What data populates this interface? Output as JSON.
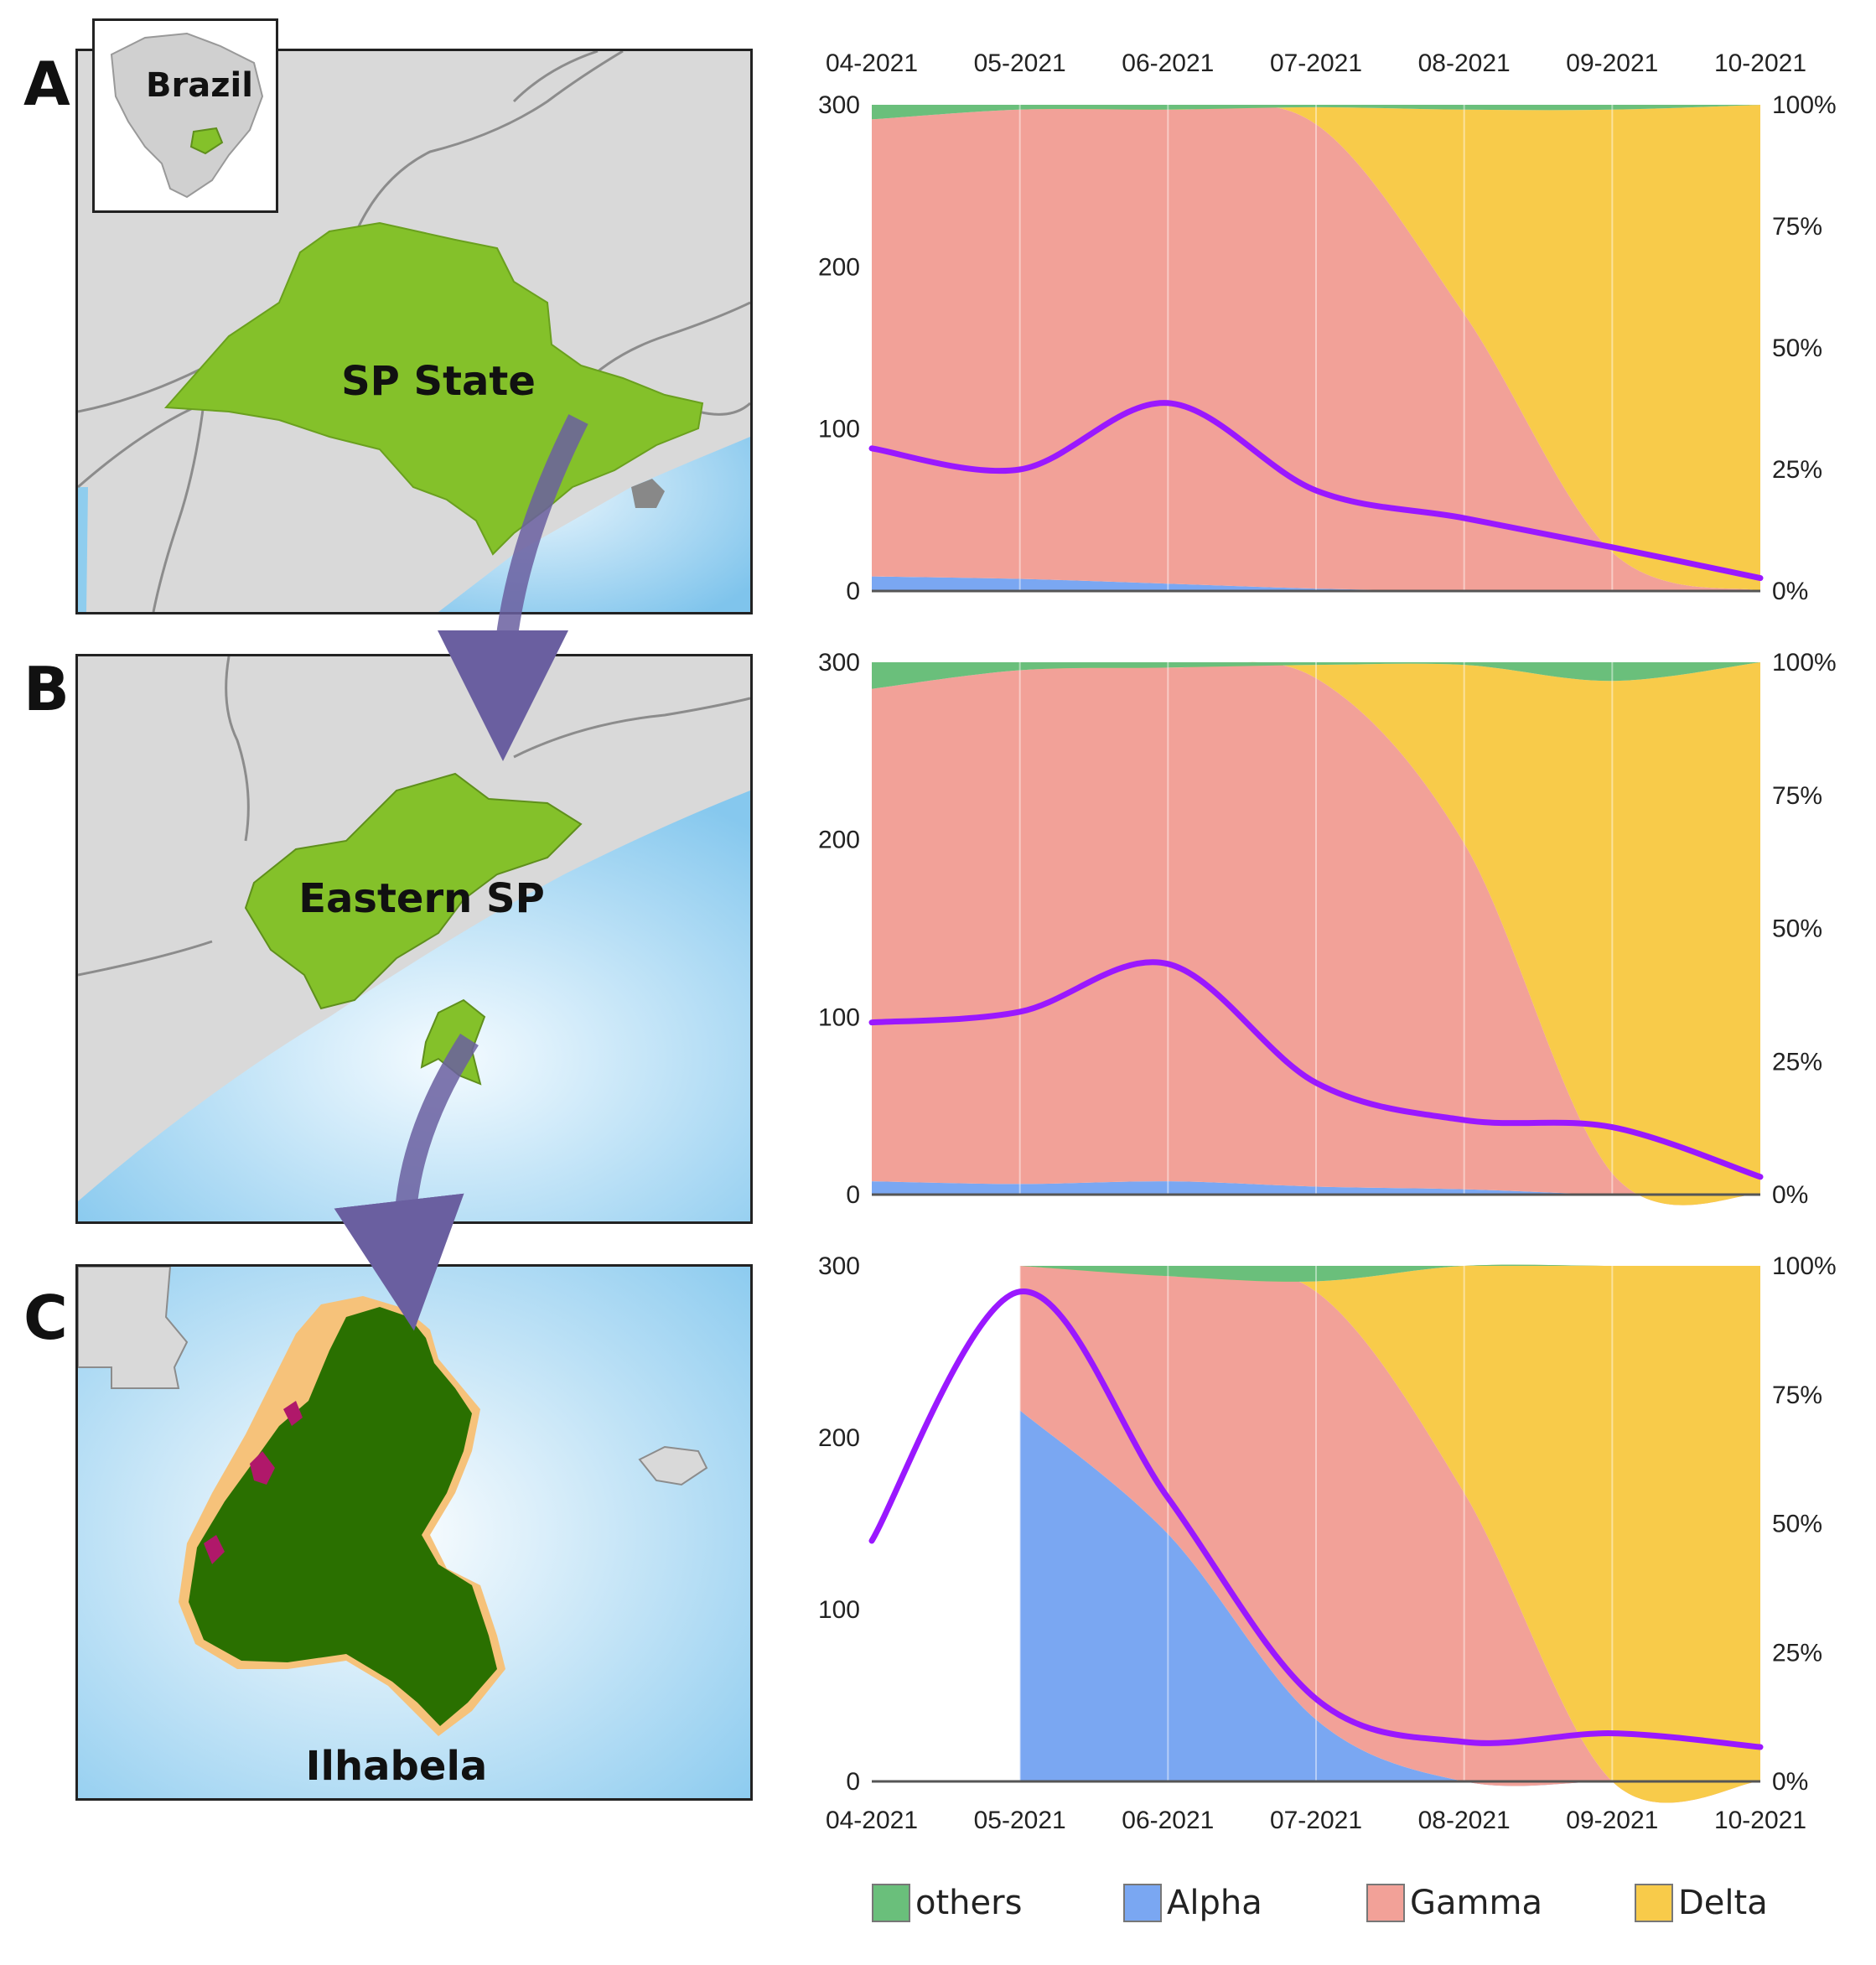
{
  "panels": {
    "a": "A",
    "b": "B",
    "c": "C"
  },
  "maps": {
    "inset_label": "Brazil",
    "a_label": "SP State",
    "b_label": "Eastern SP",
    "c_label": "Ilhabela"
  },
  "colors": {
    "others": "#6abf7b",
    "alpha": "#7aa7f2",
    "gamma": "#f2a198",
    "delta": "#f8cb4a",
    "line": "#9a18ff",
    "map_green": "#84c12a",
    "island_green": "#2a7000",
    "sea": "#9fd3f0",
    "land": "#d9d9d9"
  },
  "legend": [
    {
      "key": "others",
      "label": "others"
    },
    {
      "key": "alpha",
      "label": "Alpha"
    },
    {
      "key": "gamma",
      "label": "Gamma"
    },
    {
      "key": "delta",
      "label": "Delta"
    }
  ],
  "chart_data": [
    {
      "type": "area",
      "panel": "A",
      "stacked_percent": true,
      "x": [
        "04-2021",
        "05-2021",
        "06-2021",
        "07-2021",
        "08-2021",
        "09-2021",
        "10-2021"
      ],
      "left_axis": {
        "ticks": [
          "0",
          "100",
          "200",
          "300"
        ],
        "range": [
          0,
          300
        ]
      },
      "right_axis": {
        "ticks": [
          "0%",
          "25%",
          "50%",
          "75%",
          "100%"
        ],
        "range": [
          0,
          100
        ]
      },
      "series": [
        {
          "name": "Alpha",
          "key": "alpha",
          "values": [
            3,
            2.5,
            1.5,
            0.5,
            0,
            0,
            0
          ]
        },
        {
          "name": "Gamma",
          "key": "gamma",
          "values": [
            94,
            96.5,
            97.5,
            95.5,
            57,
            8,
            0
          ]
        },
        {
          "name": "Delta",
          "key": "delta",
          "values": [
            0,
            0,
            0,
            3.5,
            42,
            91,
            100
          ]
        },
        {
          "name": "others",
          "key": "others",
          "values": [
            3,
            1,
            1,
            0.5,
            1,
            1,
            0
          ]
        }
      ],
      "line": {
        "name": "cases",
        "values": [
          88,
          75,
          116,
          62,
          45,
          27,
          8
        ]
      }
    },
    {
      "type": "area",
      "panel": "B",
      "stacked_percent": true,
      "x": [
        "04-2021",
        "05-2021",
        "06-2021",
        "07-2021",
        "08-2021",
        "09-2021",
        "10-2021"
      ],
      "left_axis": {
        "ticks": [
          "0",
          "100",
          "200",
          "300"
        ],
        "range": [
          0,
          300
        ]
      },
      "right_axis": {
        "ticks": [
          "0%",
          "25%",
          "50%",
          "75%",
          "100%"
        ],
        "range": [
          0,
          100
        ]
      },
      "series": [
        {
          "name": "Alpha",
          "key": "alpha",
          "values": [
            2.5,
            2,
            2.5,
            1.5,
            1,
            0,
            0
          ]
        },
        {
          "name": "Gamma",
          "key": "gamma",
          "values": [
            92.5,
            96.5,
            96.5,
            95.5,
            65,
            4,
            0
          ]
        },
        {
          "name": "Delta",
          "key": "delta",
          "values": [
            0,
            0,
            0,
            2.5,
            33.5,
            92.5,
            100
          ]
        },
        {
          "name": "others",
          "key": "others",
          "values": [
            5,
            1.5,
            1,
            0.5,
            0.5,
            3.5,
            0
          ]
        }
      ],
      "line": {
        "name": "cases",
        "values": [
          97,
          103,
          130,
          63,
          42,
          38,
          10
        ]
      }
    },
    {
      "type": "area",
      "panel": "C",
      "stacked_percent": true,
      "x": [
        "04-2021",
        "05-2021",
        "06-2021",
        "07-2021",
        "08-2021",
        "09-2021",
        "10-2021"
      ],
      "left_axis": {
        "ticks": [
          "0",
          "100",
          "200",
          "300"
        ],
        "range": [
          0,
          300
        ]
      },
      "right_axis": {
        "ticks": [
          "0%",
          "25%",
          "50%",
          "75%",
          "100%"
        ],
        "range": [
          0,
          100
        ]
      },
      "area_start": "05-2021",
      "series": [
        {
          "name": "Alpha",
          "key": "alpha",
          "values": [
            null,
            72,
            48,
            12,
            0,
            0,
            0
          ]
        },
        {
          "name": "Gamma",
          "key": "gamma",
          "values": [
            null,
            28,
            50,
            83,
            56,
            0,
            0
          ]
        },
        {
          "name": "Delta",
          "key": "delta",
          "values": [
            null,
            0,
            0,
            2,
            44,
            100,
            100
          ]
        },
        {
          "name": "others",
          "key": "others",
          "values": [
            null,
            0,
            2,
            3,
            0,
            0,
            0
          ]
        }
      ],
      "line": {
        "name": "cases",
        "values": [
          140,
          285,
          165,
          48,
          23,
          28,
          20
        ]
      }
    }
  ]
}
